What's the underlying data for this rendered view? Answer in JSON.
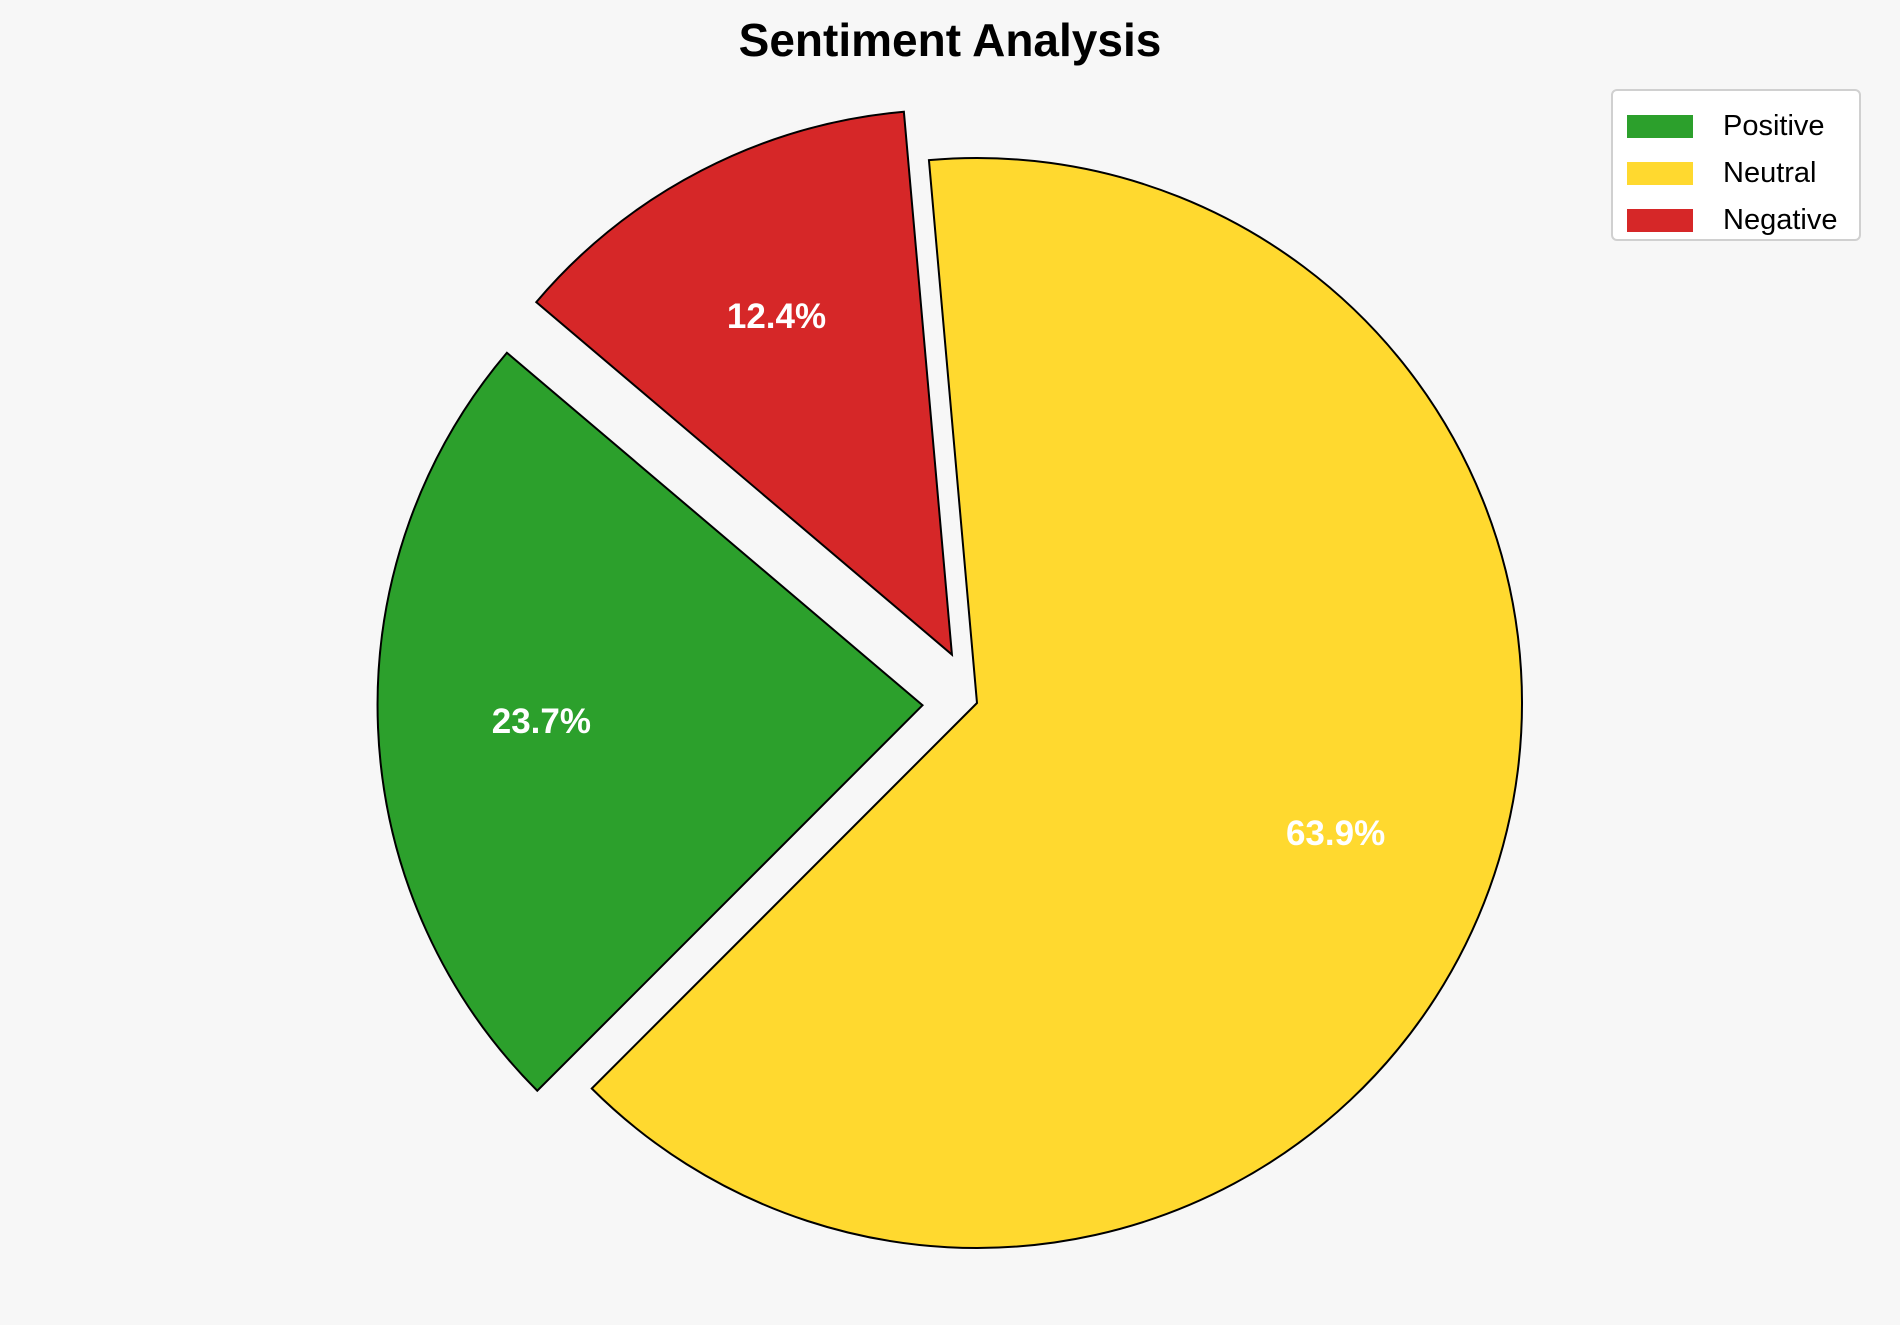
{
  "chart_data": {
    "type": "pie",
    "title": "Sentiment Analysis",
    "categories": [
      "Positive",
      "Neutral",
      "Negative"
    ],
    "values": [
      23.7,
      63.9,
      12.4
    ],
    "labels": [
      "23.7%",
      "63.9%",
      "12.4%"
    ],
    "colors": [
      "#2ca02c",
      "#ffd92f",
      "#d62728"
    ],
    "edge_color": "#000000",
    "exploded": [
      "Positive",
      "Negative"
    ],
    "legend": {
      "entries": [
        "Positive",
        "Neutral",
        "Negative"
      ],
      "placement": "top-right"
    }
  }
}
